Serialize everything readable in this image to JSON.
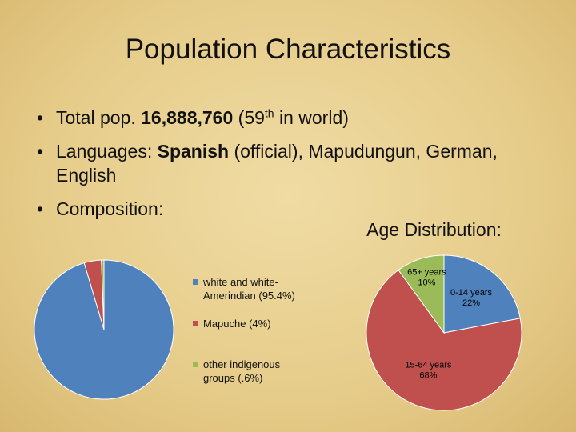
{
  "title": "Population Characteristics",
  "bullets": [
    [
      {
        "text": "Total pop. "
      },
      {
        "text": "16,888,760",
        "bold": true
      },
      {
        "text": " (59"
      },
      {
        "text": "th",
        "sup": true
      },
      {
        "text": " in world)"
      }
    ],
    [
      {
        "text": "Languages: "
      },
      {
        "text": "Spanish",
        "bold": true
      },
      {
        "text": " (official), Mapudungun, German, English"
      }
    ],
    [
      {
        "text": "Composition:"
      }
    ]
  ],
  "chart_data": [
    {
      "type": "pie",
      "categories": [
        "white and white-Amerindian (95.4%)",
        "Mapuche (4%)",
        "other indigenous groups (.6%)"
      ],
      "values": [
        95.4,
        4,
        0.6
      ],
      "colors": [
        "#4f81bd",
        "#c0504d",
        "#9bbb59"
      ],
      "legend": "right"
    },
    {
      "type": "pie",
      "title": "Age Distribution:",
      "categories": [
        "0-14 years",
        "15-64 years",
        "65+ years"
      ],
      "values": [
        22,
        68,
        10
      ],
      "value_labels": [
        "22%",
        "68%",
        "10%"
      ],
      "colors": [
        "#4f81bd",
        "#c0504d",
        "#9bbb59"
      ]
    }
  ]
}
